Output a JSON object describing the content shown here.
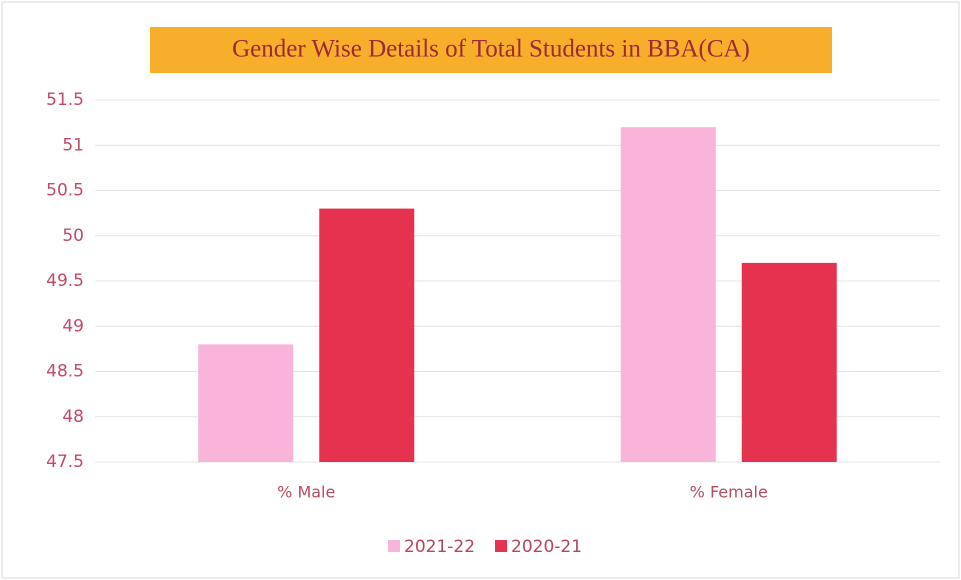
{
  "chart_data": {
    "type": "bar",
    "title": "Gender Wise Details of Total Students in BBA(CA)",
    "categories": [
      "% Male",
      "% Female"
    ],
    "series": [
      {
        "name": "2021-22",
        "color": "#f8b4d9",
        "values": [
          48.8,
          51.2
        ]
      },
      {
        "name": "2020-21",
        "color": "#e5324f",
        "values": [
          50.3,
          49.7
        ]
      }
    ],
    "ylim": [
      47.5,
      51.5
    ],
    "yticks": [
      47.5,
      48,
      48.5,
      49,
      49.5,
      50,
      50.5,
      51,
      51.5
    ],
    "grid": true,
    "legend": "bottom"
  }
}
